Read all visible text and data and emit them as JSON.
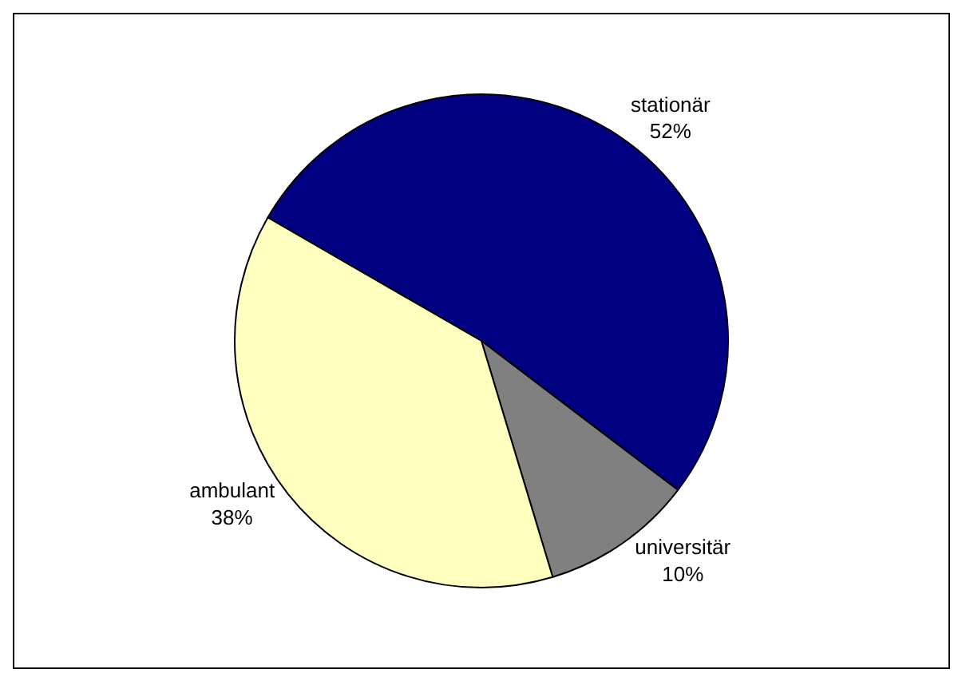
{
  "chart_data": {
    "type": "pie",
    "categories": [
      "stationär",
      "universitär",
      "ambulant"
    ],
    "values": [
      52,
      10,
      38
    ],
    "value_labels": [
      "52%",
      "10%",
      "38%"
    ],
    "colors": [
      "#000080",
      "#808080",
      "#ffffc0"
    ],
    "legend": false
  }
}
